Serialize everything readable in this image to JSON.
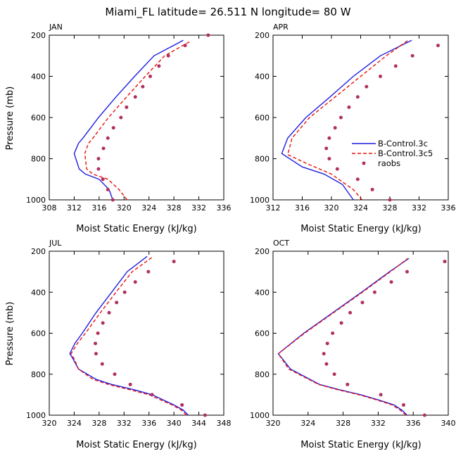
{
  "figure": {
    "title": "Miami_FL  latitude= 26.511 N longitude= 80 W",
    "legend_entries": [
      "B-Control.3c",
      "B-Control.3c5",
      "raobs"
    ],
    "colors": {
      "series1": "#1f1fe0",
      "series2": "#e8120c",
      "raobs": "#b03060"
    }
  },
  "chart_data": [
    {
      "type": "line",
      "panel": "JAN",
      "xlabel": "Moist Static Energy (kJ/kg)",
      "ylabel": "Pressure (mb)",
      "xlim": [
        308,
        336
      ],
      "ylim": [
        1000,
        200
      ],
      "y_inverted": true,
      "xticks": [
        308,
        312,
        316,
        320,
        324,
        328,
        332,
        336
      ],
      "yticks": [
        200,
        400,
        600,
        800,
        1000
      ],
      "has_legend": false,
      "series": [
        {
          "name": "B-Control.3c",
          "style": "solid",
          "points": [
            [
              318.2,
              1000
            ],
            [
              317.6,
              950
            ],
            [
              316.0,
              900
            ],
            [
              313.8,
              875
            ],
            [
              312.8,
              850
            ],
            [
              312.0,
              775
            ],
            [
              312.7,
              725
            ],
            [
              313.4,
              700
            ],
            [
              315.9,
              600
            ],
            [
              318.7,
              500
            ],
            [
              321.7,
              400
            ],
            [
              324.8,
              300
            ],
            [
              329.5,
              225
            ]
          ]
        },
        {
          "name": "B-Control.3c5",
          "style": "dashed",
          "points": [
            [
              320.5,
              1000
            ],
            [
              319.2,
              950
            ],
            [
              317.4,
              900
            ],
            [
              315.0,
              875
            ],
            [
              314.0,
              850
            ],
            [
              313.7,
              775
            ],
            [
              314.3,
              725
            ],
            [
              315.0,
              700
            ],
            [
              317.5,
              600
            ],
            [
              320.4,
              500
            ],
            [
              323.4,
              400
            ],
            [
              326.5,
              300
            ],
            [
              330.6,
              230
            ]
          ]
        },
        {
          "name": "raobs",
          "style": "points",
          "points": [
            [
              318.2,
              1000
            ],
            [
              317.4,
              950
            ],
            [
              316.6,
              900
            ],
            [
              315.9,
              850
            ],
            [
              315.9,
              800
            ],
            [
              316.7,
              750
            ],
            [
              317.4,
              700
            ],
            [
              318.3,
              650
            ],
            [
              319.5,
              600
            ],
            [
              320.4,
              550
            ],
            [
              321.8,
              500
            ],
            [
              323.0,
              450
            ],
            [
              324.2,
              400
            ],
            [
              325.6,
              350
            ],
            [
              327.1,
              300
            ],
            [
              329.8,
              250
            ],
            [
              333.5,
              200
            ]
          ]
        }
      ]
    },
    {
      "type": "line",
      "panel": "APR",
      "xlabel": "Moist Static Energy (kJ/kg)",
      "ylabel": "Pressure (mb)",
      "xlim": [
        312,
        336
      ],
      "ylim": [
        1000,
        200
      ],
      "y_inverted": true,
      "xticks": [
        312,
        316,
        320,
        324,
        328,
        332,
        336
      ],
      "yticks": [
        200,
        400,
        600,
        800,
        1000
      ],
      "has_legend": true,
      "series": [
        {
          "name": "B-Control.3c",
          "style": "solid",
          "points": [
            [
              323.0,
              1000
            ],
            [
              321.5,
              925
            ],
            [
              319.0,
              875
            ],
            [
              316.0,
              840
            ],
            [
              313.2,
              775
            ],
            [
              314.0,
              700
            ],
            [
              316.5,
              600
            ],
            [
              319.8,
              500
            ],
            [
              323.0,
              400
            ],
            [
              326.7,
              300
            ],
            [
              331.0,
              225
            ]
          ]
        },
        {
          "name": "B-Control.3c5",
          "style": "dashed",
          "points": [
            [
              324.2,
              1000
            ],
            [
              323.0,
              950
            ],
            [
              320.0,
              875
            ],
            [
              316.7,
              825
            ],
            [
              314.0,
              780
            ],
            [
              314.6,
              700
            ],
            [
              317.0,
              600
            ],
            [
              320.5,
              500
            ],
            [
              324.0,
              400
            ],
            [
              327.5,
              300
            ],
            [
              330.5,
              225
            ]
          ]
        },
        {
          "name": "raobs",
          "style": "points",
          "points": [
            [
              328.0,
              1000
            ],
            [
              325.6,
              950
            ],
            [
              323.6,
              900
            ],
            [
              320.8,
              850
            ],
            [
              319.7,
              800
            ],
            [
              319.3,
              750
            ],
            [
              319.7,
              700
            ],
            [
              320.5,
              650
            ],
            [
              321.3,
              600
            ],
            [
              322.4,
              550
            ],
            [
              323.6,
              500
            ],
            [
              324.8,
              450
            ],
            [
              326.7,
              400
            ],
            [
              328.8,
              350
            ],
            [
              331.1,
              300
            ],
            [
              334.6,
              250
            ]
          ]
        }
      ]
    },
    {
      "type": "line",
      "panel": "JUL",
      "xlabel": "Moist Static Energy (kJ/kg)",
      "ylabel": "Pressure (mb)",
      "xlim": [
        320,
        348
      ],
      "ylim": [
        1000,
        200
      ],
      "y_inverted": true,
      "xticks": [
        320,
        324,
        328,
        332,
        336,
        340,
        344,
        348
      ],
      "yticks": [
        200,
        400,
        600,
        800,
        1000
      ],
      "has_legend": false,
      "series": [
        {
          "name": "B-Control.3c",
          "style": "solid",
          "points": [
            [
              342.3,
              1000
            ],
            [
              341.5,
              975
            ],
            [
              340.0,
              950
            ],
            [
              336.5,
              900
            ],
            [
              333.5,
              875
            ],
            [
              330.0,
              850
            ],
            [
              327.5,
              825
            ],
            [
              324.7,
              775
            ],
            [
              323.8,
              725
            ],
            [
              323.3,
              700
            ],
            [
              324.1,
              650
            ],
            [
              325.3,
              600
            ],
            [
              327.5,
              500
            ],
            [
              330.0,
              400
            ],
            [
              332.5,
              300
            ],
            [
              335.7,
              225
            ]
          ]
        },
        {
          "name": "B-Control.3c5",
          "style": "dashed",
          "points": [
            [
              342.0,
              1000
            ],
            [
              341.2,
              975
            ],
            [
              339.7,
              950
            ],
            [
              336.0,
              900
            ],
            [
              332.8,
              875
            ],
            [
              329.5,
              850
            ],
            [
              327.0,
              825
            ],
            [
              324.7,
              775
            ],
            [
              324.0,
              725
            ],
            [
              323.5,
              700
            ],
            [
              324.5,
              650
            ],
            [
              325.8,
              600
            ],
            [
              328.2,
              500
            ],
            [
              330.7,
              400
            ],
            [
              333.3,
              300
            ],
            [
              336.5,
              230
            ]
          ]
        },
        {
          "name": "raobs",
          "style": "points",
          "points": [
            [
              345.0,
              1000
            ],
            [
              341.3,
              950
            ],
            [
              336.5,
              900
            ],
            [
              333.0,
              850
            ],
            [
              330.5,
              800
            ],
            [
              328.5,
              750
            ],
            [
              327.5,
              700
            ],
            [
              327.4,
              650
            ],
            [
              327.8,
              600
            ],
            [
              328.6,
              550
            ],
            [
              329.6,
              500
            ],
            [
              330.8,
              450
            ],
            [
              332.1,
              400
            ],
            [
              333.8,
              350
            ],
            [
              335.9,
              300
            ],
            [
              340.0,
              250
            ]
          ]
        }
      ]
    },
    {
      "type": "line",
      "panel": "OCT",
      "xlabel": "Moist Static Energy (kJ/kg)",
      "ylabel": "Pressure (mb)",
      "xlim": [
        320,
        340
      ],
      "ylim": [
        1000,
        200
      ],
      "y_inverted": true,
      "xticks": [
        320,
        324,
        328,
        332,
        336,
        340
      ],
      "yticks": [
        200,
        400,
        600,
        800,
        1000
      ],
      "has_legend": false,
      "series": [
        {
          "name": "B-Control.3c",
          "style": "solid",
          "points": [
            [
              335.3,
              1000
            ],
            [
              334.7,
              975
            ],
            [
              333.8,
              950
            ],
            [
              332.0,
              925
            ],
            [
              330.0,
              900
            ],
            [
              327.5,
              875
            ],
            [
              325.3,
              850
            ],
            [
              322.0,
              775
            ],
            [
              320.6,
              700
            ],
            [
              323.5,
              600
            ],
            [
              326.8,
              500
            ],
            [
              330.1,
              400
            ],
            [
              333.3,
              300
            ],
            [
              335.5,
              235
            ]
          ]
        },
        {
          "name": "B-Control.3c5",
          "style": "dashed",
          "points": [
            [
              335.2,
              1000
            ],
            [
              334.5,
              975
            ],
            [
              333.6,
              950
            ],
            [
              331.8,
              925
            ],
            [
              329.8,
              900
            ],
            [
              327.3,
              875
            ],
            [
              325.2,
              850
            ],
            [
              321.8,
              775
            ],
            [
              320.6,
              700
            ],
            [
              323.6,
              600
            ],
            [
              326.9,
              500
            ],
            [
              330.2,
              400
            ],
            [
              333.4,
              300
            ],
            [
              335.4,
              235
            ]
          ]
        },
        {
          "name": "raobs",
          "style": "points",
          "points": [
            [
              337.3,
              1000
            ],
            [
              334.9,
              950
            ],
            [
              332.3,
              900
            ],
            [
              328.5,
              850
            ],
            [
              327.0,
              800
            ],
            [
              326.1,
              750
            ],
            [
              325.8,
              700
            ],
            [
              326.2,
              650
            ],
            [
              326.8,
              600
            ],
            [
              327.8,
              550
            ],
            [
              328.8,
              500
            ],
            [
              330.2,
              450
            ],
            [
              331.6,
              400
            ],
            [
              333.5,
              350
            ],
            [
              335.3,
              300
            ],
            [
              339.6,
              250
            ]
          ]
        }
      ]
    }
  ]
}
